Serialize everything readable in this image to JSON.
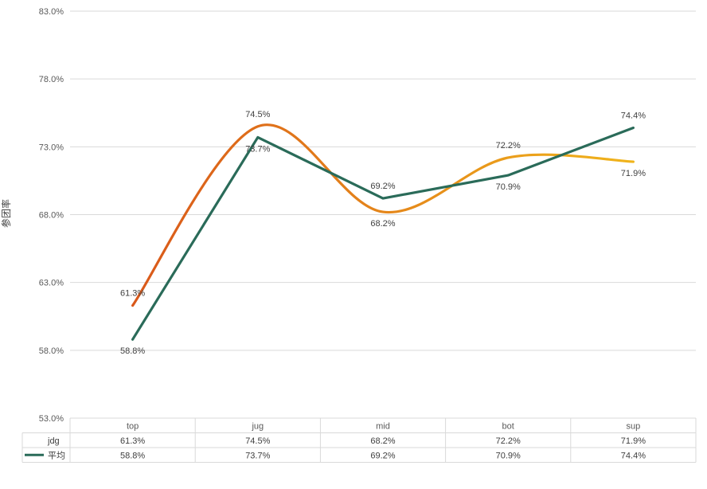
{
  "chart_data": {
    "type": "line",
    "ylabel": "参团率",
    "ylim": [
      53.0,
      83.0
    ],
    "yticks": [
      53.0,
      58.0,
      63.0,
      68.0,
      73.0,
      78.0,
      83.0
    ],
    "ytick_suffix": "%",
    "grid": true,
    "categories": [
      "top",
      "jug",
      "mid",
      "bot",
      "sup"
    ],
    "series": [
      {
        "name": "jdg",
        "values": [
          61.3,
          74.5,
          68.2,
          72.2,
          71.9
        ],
        "color_start": "#d9581a",
        "color_end": "#f0b41b",
        "smooth": true
      },
      {
        "name": "平均",
        "values": [
          58.8,
          73.7,
          69.2,
          70.9,
          74.4
        ],
        "color": "#2a6b59",
        "smooth": false
      }
    ],
    "data_table": true
  },
  "colors": {
    "grid": "#d9d9d9",
    "axis_text": "#595959",
    "label_text": "#404040"
  }
}
